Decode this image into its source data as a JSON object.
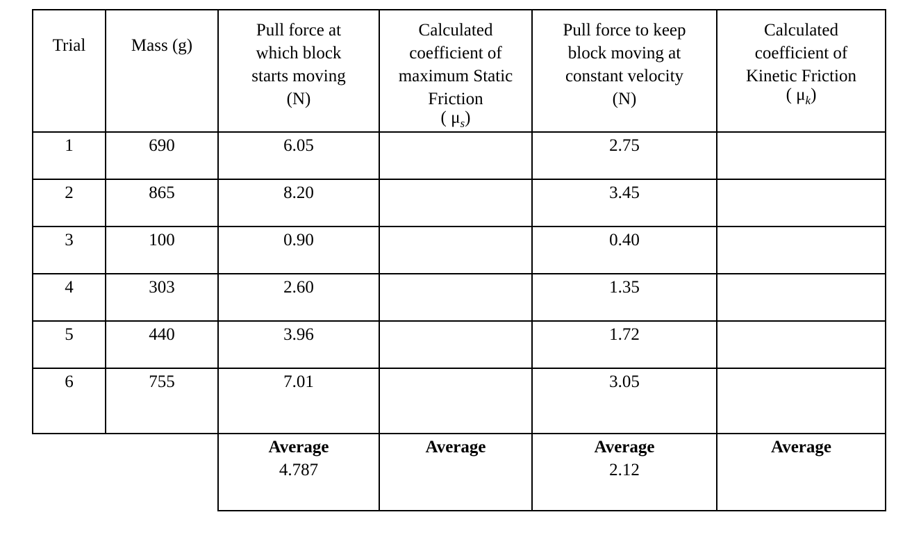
{
  "table": {
    "header": [
      {
        "lines": [
          "Trial"
        ]
      },
      {
        "lines": [
          "Mass (g)"
        ]
      },
      {
        "lines": [
          "Pull force at",
          "which block",
          "starts moving",
          "(N)"
        ]
      },
      {
        "lines": [
          "Calculated",
          "coefficient of",
          "maximum Static",
          "Friction"
        ],
        "symbol": [
          "( μ",
          "s",
          ")"
        ]
      },
      {
        "lines": [
          "Pull force to keep",
          "block moving at",
          "constant velocity",
          "(N)"
        ]
      },
      {
        "lines": [
          "Calculated",
          "coefficient of",
          "Kinetic Friction"
        ],
        "symbol": [
          "( μ",
          "k",
          ")"
        ]
      }
    ],
    "rows": [
      {
        "trial": "1",
        "mass": "690",
        "static_pull": "6.05",
        "kinetic_pull": "2.75"
      },
      {
        "trial": "2",
        "mass": "865",
        "static_pull": "8.20",
        "kinetic_pull": "3.45"
      },
      {
        "trial": "3",
        "mass": "100",
        "static_pull": "0.90",
        "kinetic_pull": "0.40"
      },
      {
        "trial": "4",
        "mass": "303",
        "static_pull": "2.60",
        "kinetic_pull": "1.35"
      },
      {
        "trial": "5",
        "mass": "440",
        "static_pull": "3.96",
        "kinetic_pull": "1.72"
      },
      {
        "trial": "6",
        "mass": "755",
        "static_pull": "7.01",
        "kinetic_pull": "3.05"
      }
    ],
    "averages": [
      {
        "label": "Average",
        "value": "4.787"
      },
      {
        "label": "Average"
      },
      {
        "label": "Average",
        "value": "2.12"
      },
      {
        "label": "Average"
      }
    ]
  }
}
